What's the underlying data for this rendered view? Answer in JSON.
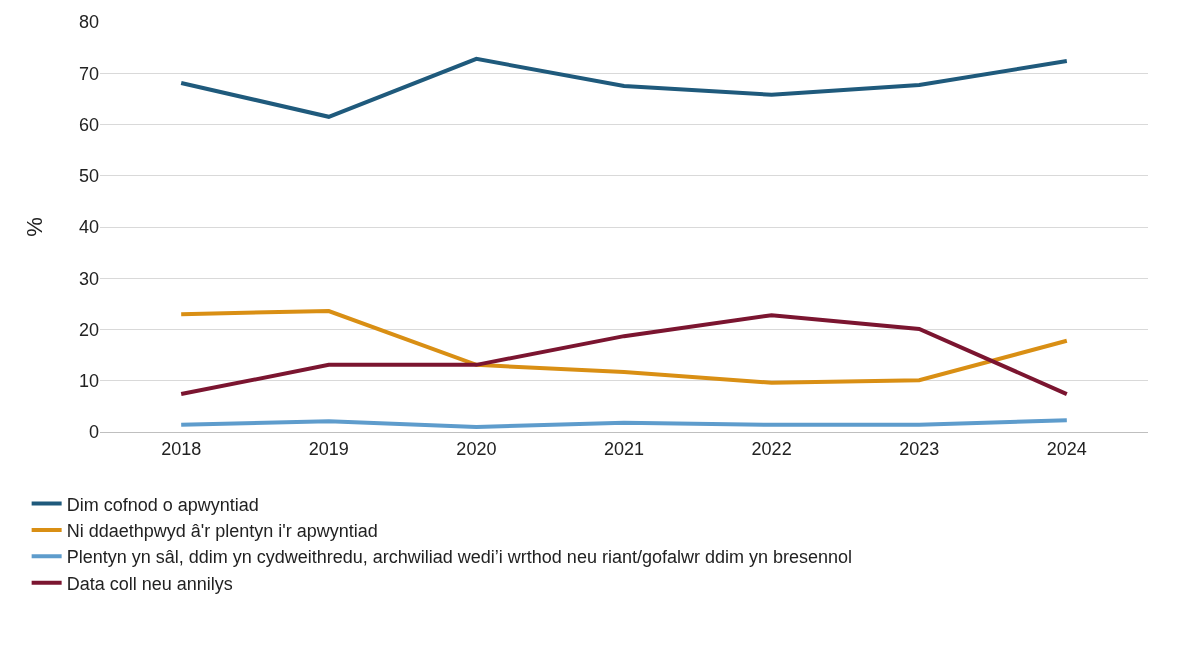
{
  "chart_data": {
    "type": "line",
    "ylabel": "%",
    "categories": [
      "2018",
      "2019",
      "2020",
      "2021",
      "2022",
      "2023",
      "2024"
    ],
    "series": [
      {
        "name": "Dim cofnod o apwyntiad",
        "color": "#1f5a7c",
        "values": [
          68.1,
          61.5,
          72.8,
          67.5,
          65.8,
          67.7,
          72.4
        ]
      },
      {
        "name": "Ni ddaethpwyd â'r plentyn i'r apwyntiad",
        "color": "#d98f14",
        "values": [
          23.0,
          23.6,
          13.1,
          11.7,
          9.6,
          10.1,
          17.8
        ]
      },
      {
        "name": "Plentyn yn sâl, ddim yn cydweithredu, archwiliad wedi’i wrthod neu riant/gofalwr ddim yn bresennol",
        "color": "#5e9ccc",
        "values": [
          1.4,
          2.1,
          1.0,
          1.8,
          1.4,
          1.4,
          2.3
        ]
      },
      {
        "name": "Data coll neu annilys",
        "color": "#7b1530",
        "values": [
          7.4,
          13.1,
          13.1,
          18.7,
          22.8,
          20.1,
          7.4
        ]
      }
    ],
    "ylim": [
      0,
      80
    ],
    "yticks": [
      0,
      10,
      20,
      30,
      40,
      50,
      60,
      70,
      80
    ],
    "grid": "y",
    "legend": "bottom",
    "marker": "none",
    "line_style": "solid"
  }
}
